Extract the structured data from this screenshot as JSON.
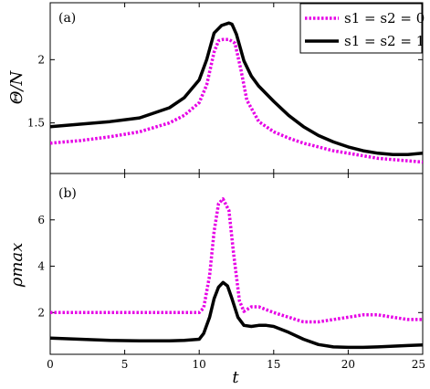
{
  "chart_data": [
    {
      "panel": "(a)",
      "type": "line",
      "xlabel": "",
      "ylabel": "Θ/N",
      "xlim": [
        0,
        25
      ],
      "ylim": [
        1.1,
        2.45
      ],
      "yticks": [
        "1.5",
        "2"
      ],
      "ytick_values": [
        1.5,
        2.0
      ],
      "grid": false,
      "legend": {
        "placement": "top-right"
      },
      "series": [
        {
          "name": "s1 = s2 = 0",
          "color": "#e600e6",
          "style": "dotted",
          "x": [
            0,
            2,
            4,
            6,
            8,
            9,
            10,
            10.5,
            11,
            11.3,
            11.6,
            12,
            12.4,
            12.8,
            13.2,
            14,
            15,
            16,
            17,
            18,
            19,
            20,
            21,
            22,
            23,
            24,
            25
          ],
          "y": [
            1.34,
            1.36,
            1.39,
            1.43,
            1.5,
            1.56,
            1.66,
            1.8,
            2.06,
            2.15,
            2.16,
            2.16,
            2.13,
            1.92,
            1.68,
            1.51,
            1.43,
            1.38,
            1.34,
            1.31,
            1.28,
            1.26,
            1.24,
            1.22,
            1.21,
            1.2,
            1.19
          ]
        },
        {
          "name": "s1 = s2 = 1",
          "color": "#000000",
          "style": "solid",
          "x": [
            0,
            2,
            4,
            6,
            8,
            9,
            10,
            10.5,
            11,
            11.5,
            12,
            12.2,
            12.5,
            13,
            13.5,
            14,
            15,
            16,
            17,
            18,
            19,
            20,
            21,
            22,
            23,
            24,
            25
          ],
          "y": [
            1.47,
            1.49,
            1.51,
            1.54,
            1.62,
            1.7,
            1.84,
            2.0,
            2.21,
            2.27,
            2.29,
            2.28,
            2.2,
            1.99,
            1.87,
            1.79,
            1.67,
            1.56,
            1.47,
            1.4,
            1.35,
            1.31,
            1.28,
            1.26,
            1.25,
            1.25,
            1.26
          ]
        }
      ]
    },
    {
      "panel": "(b)",
      "type": "line",
      "xlabel": "t",
      "ylabel": "ρmax",
      "xlim": [
        0,
        25
      ],
      "ylim": [
        0.2,
        8.0
      ],
      "yticks": [
        "2",
        "4",
        "6"
      ],
      "ytick_values": [
        2,
        4,
        6
      ],
      "xticks": [
        "0",
        "5",
        "10",
        "15",
        "20",
        "25"
      ],
      "xtick_values": [
        0,
        5,
        10,
        15,
        20,
        25
      ],
      "grid": false,
      "series": [
        {
          "name": "s1 = s2 = 0",
          "color": "#e600e6",
          "style": "dotted",
          "x": [
            0,
            2,
            4,
            6,
            8,
            9,
            10,
            10.3,
            10.7,
            11,
            11.3,
            11.6,
            12,
            12.3,
            12.7,
            13,
            13.5,
            14,
            15,
            16,
            17,
            18,
            19,
            20,
            21,
            22,
            23,
            24,
            25
          ],
          "y": [
            2.0,
            2.0,
            2.0,
            2.0,
            2.0,
            2.0,
            2.0,
            2.2,
            3.6,
            5.5,
            6.7,
            6.9,
            6.4,
            4.6,
            2.5,
            2.05,
            2.25,
            2.25,
            2.0,
            1.8,
            1.6,
            1.6,
            1.7,
            1.8,
            1.9,
            1.9,
            1.8,
            1.7,
            1.7
          ]
        },
        {
          "name": "s1 = s2 = 1",
          "color": "#000000",
          "style": "solid",
          "x": [
            0,
            2,
            4,
            6,
            8,
            9,
            10,
            10.3,
            10.7,
            11,
            11.3,
            11.6,
            11.9,
            12.2,
            12.6,
            13,
            13.5,
            14,
            14.5,
            15,
            16,
            17,
            18,
            19,
            20,
            21,
            22,
            23,
            24,
            25
          ],
          "y": [
            0.9,
            0.85,
            0.8,
            0.78,
            0.78,
            0.8,
            0.85,
            1.1,
            1.8,
            2.6,
            3.1,
            3.3,
            3.15,
            2.6,
            1.8,
            1.45,
            1.4,
            1.45,
            1.45,
            1.4,
            1.15,
            0.85,
            0.62,
            0.52,
            0.5,
            0.5,
            0.52,
            0.55,
            0.58,
            0.6
          ]
        }
      ]
    }
  ]
}
